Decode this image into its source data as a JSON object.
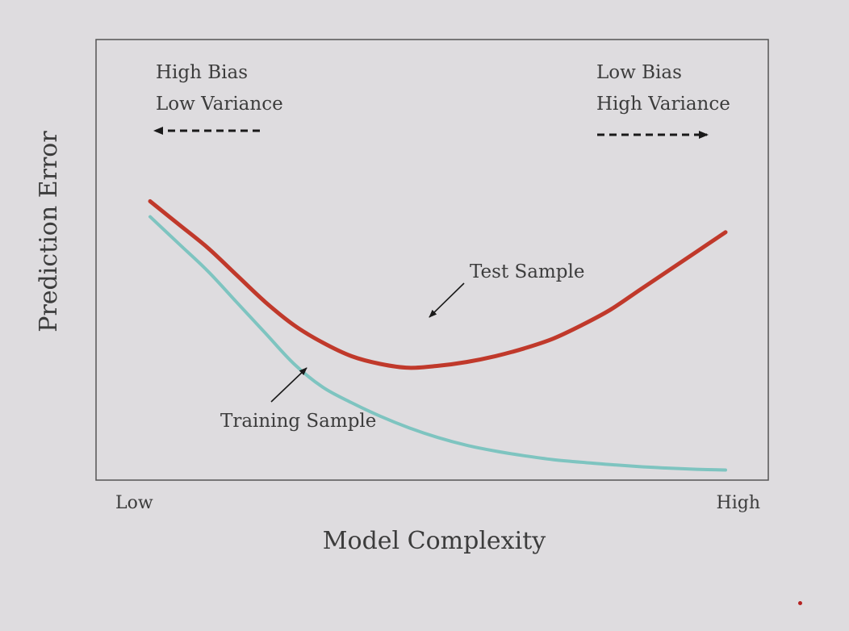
{
  "chart_data": {
    "type": "line",
    "title": "",
    "xlabel": "Model Complexity",
    "ylabel": "Prediction Error",
    "x_tick_labels": {
      "low": "Low",
      "high": "High"
    },
    "xlim": [
      0,
      1
    ],
    "ylim": [
      0,
      1
    ],
    "grid": false,
    "series": [
      {
        "name": "Test Sample",
        "color": "#c0392b",
        "x": [
          0.0,
          0.05,
          0.1,
          0.15,
          0.2,
          0.25,
          0.3,
          0.35,
          0.4,
          0.45,
          0.5,
          0.55,
          0.6,
          0.65,
          0.7,
          0.75,
          0.8,
          0.85,
          0.9,
          0.95,
          1.0
        ],
        "y": [
          0.72,
          0.66,
          0.6,
          0.53,
          0.46,
          0.4,
          0.355,
          0.32,
          0.3,
          0.29,
          0.295,
          0.305,
          0.32,
          0.34,
          0.365,
          0.4,
          0.44,
          0.49,
          0.54,
          0.59,
          0.64
        ]
      },
      {
        "name": "Training Sample",
        "color": "#7ec4c0",
        "x": [
          0.0,
          0.05,
          0.1,
          0.15,
          0.2,
          0.25,
          0.3,
          0.35,
          0.4,
          0.45,
          0.5,
          0.55,
          0.6,
          0.65,
          0.7,
          0.75,
          0.8,
          0.85,
          0.9,
          0.95,
          1.0
        ],
        "y": [
          0.68,
          0.61,
          0.54,
          0.46,
          0.38,
          0.3,
          0.24,
          0.2,
          0.165,
          0.135,
          0.11,
          0.09,
          0.075,
          0.063,
          0.053,
          0.046,
          0.04,
          0.035,
          0.031,
          0.028,
          0.026
        ]
      }
    ],
    "annotations": {
      "left_top": "High Bias",
      "left_bottom": "Low Variance",
      "right_top": "Low Bias",
      "right_bottom": "High Variance",
      "test_label": "Test Sample",
      "train_label": "Training Sample"
    },
    "colors": {
      "frame": "#555555",
      "arrow": "#1a1a1a",
      "dot": "#b52222"
    }
  }
}
